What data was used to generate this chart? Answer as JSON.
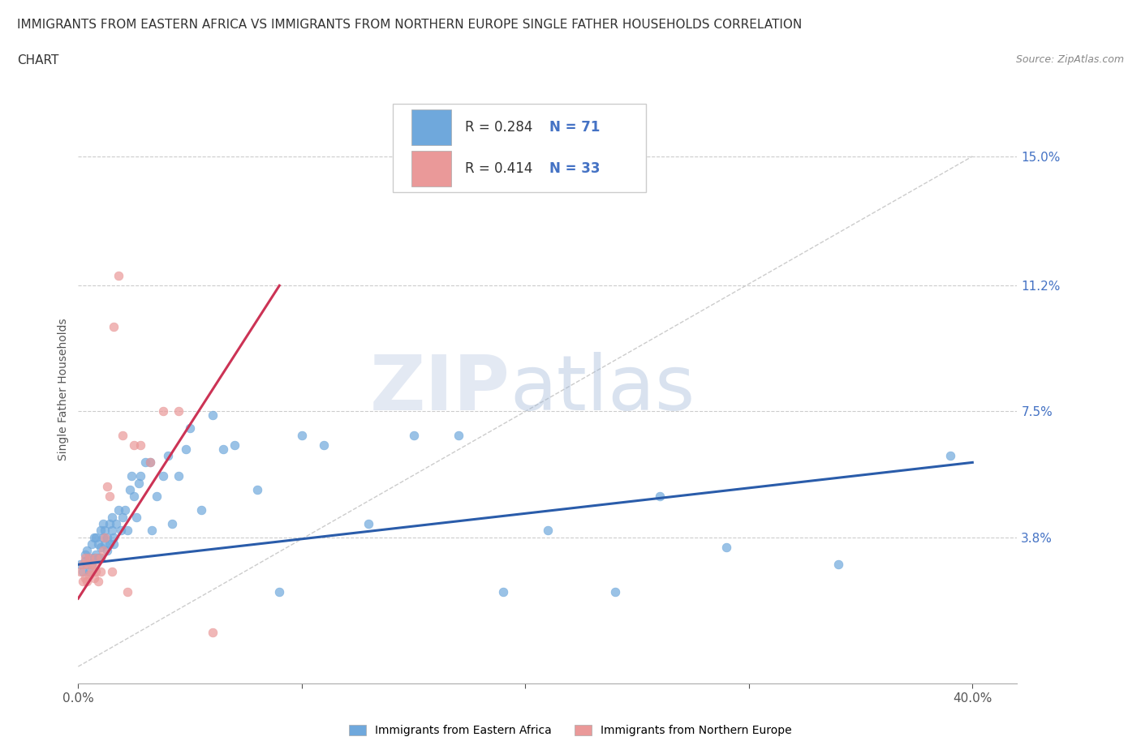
{
  "title_line1": "IMMIGRANTS FROM EASTERN AFRICA VS IMMIGRANTS FROM NORTHERN EUROPE SINGLE FATHER HOUSEHOLDS CORRELATION",
  "title_line2": "CHART",
  "source": "Source: ZipAtlas.com",
  "ylabel": "Single Father Households",
  "xlim": [
    0.0,
    0.42
  ],
  "ylim": [
    -0.005,
    0.168
  ],
  "xticks": [
    0.0,
    0.1,
    0.2,
    0.3,
    0.4
  ],
  "xticklabels": [
    "0.0%",
    "",
    "",
    "",
    "40.0%"
  ],
  "ytick_values": [
    0.038,
    0.075,
    0.112,
    0.15
  ],
  "ytick_labels": [
    "3.8%",
    "7.5%",
    "11.2%",
    "15.0%"
  ],
  "blue_color": "#6fa8dc",
  "pink_color": "#ea9999",
  "blue_line_color": "#2a5caa",
  "pink_line_color": "#cc3355",
  "watermark_zip": "ZIP",
  "watermark_atlas": "atlas",
  "blue_scatter_x": [
    0.001,
    0.002,
    0.003,
    0.003,
    0.004,
    0.004,
    0.005,
    0.005,
    0.006,
    0.006,
    0.007,
    0.007,
    0.008,
    0.008,
    0.009,
    0.009,
    0.01,
    0.01,
    0.01,
    0.011,
    0.011,
    0.012,
    0.012,
    0.013,
    0.013,
    0.014,
    0.014,
    0.015,
    0.015,
    0.016,
    0.016,
    0.017,
    0.018,
    0.019,
    0.02,
    0.021,
    0.022,
    0.023,
    0.024,
    0.025,
    0.026,
    0.027,
    0.028,
    0.03,
    0.032,
    0.033,
    0.035,
    0.038,
    0.04,
    0.042,
    0.045,
    0.048,
    0.05,
    0.055,
    0.06,
    0.065,
    0.07,
    0.08,
    0.09,
    0.1,
    0.11,
    0.13,
    0.15,
    0.17,
    0.19,
    0.21,
    0.24,
    0.26,
    0.29,
    0.34,
    0.39
  ],
  "blue_scatter_y": [
    0.03,
    0.028,
    0.031,
    0.033,
    0.03,
    0.034,
    0.028,
    0.032,
    0.03,
    0.036,
    0.032,
    0.038,
    0.033,
    0.038,
    0.032,
    0.036,
    0.035,
    0.032,
    0.04,
    0.038,
    0.042,
    0.036,
    0.04,
    0.034,
    0.038,
    0.036,
    0.042,
    0.04,
    0.044,
    0.036,
    0.038,
    0.042,
    0.046,
    0.04,
    0.044,
    0.046,
    0.04,
    0.052,
    0.056,
    0.05,
    0.044,
    0.054,
    0.056,
    0.06,
    0.06,
    0.04,
    0.05,
    0.056,
    0.062,
    0.042,
    0.056,
    0.064,
    0.07,
    0.046,
    0.074,
    0.064,
    0.065,
    0.052,
    0.022,
    0.068,
    0.065,
    0.042,
    0.068,
    0.068,
    0.022,
    0.04,
    0.022,
    0.05,
    0.035,
    0.03,
    0.062
  ],
  "pink_scatter_x": [
    0.001,
    0.002,
    0.002,
    0.003,
    0.003,
    0.004,
    0.004,
    0.005,
    0.005,
    0.006,
    0.006,
    0.007,
    0.007,
    0.008,
    0.008,
    0.009,
    0.01,
    0.01,
    0.011,
    0.012,
    0.013,
    0.014,
    0.015,
    0.016,
    0.018,
    0.02,
    0.022,
    0.025,
    0.028,
    0.032,
    0.038,
    0.045,
    0.06
  ],
  "pink_scatter_y": [
    0.028,
    0.03,
    0.025,
    0.032,
    0.026,
    0.03,
    0.025,
    0.032,
    0.027,
    0.03,
    0.028,
    0.03,
    0.026,
    0.032,
    0.028,
    0.025,
    0.028,
    0.032,
    0.034,
    0.038,
    0.053,
    0.05,
    0.028,
    0.1,
    0.115,
    0.068,
    0.022,
    0.065,
    0.065,
    0.06,
    0.075,
    0.075,
    0.01
  ],
  "blue_trend_x": [
    0.0,
    0.4
  ],
  "blue_trend_y": [
    0.03,
    0.06
  ],
  "pink_trend_x": [
    0.0,
    0.09
  ],
  "pink_trend_y": [
    0.02,
    0.112
  ],
  "diag_line_x": [
    0.0,
    0.4
  ],
  "diag_line_y": [
    0.0,
    0.15
  ]
}
